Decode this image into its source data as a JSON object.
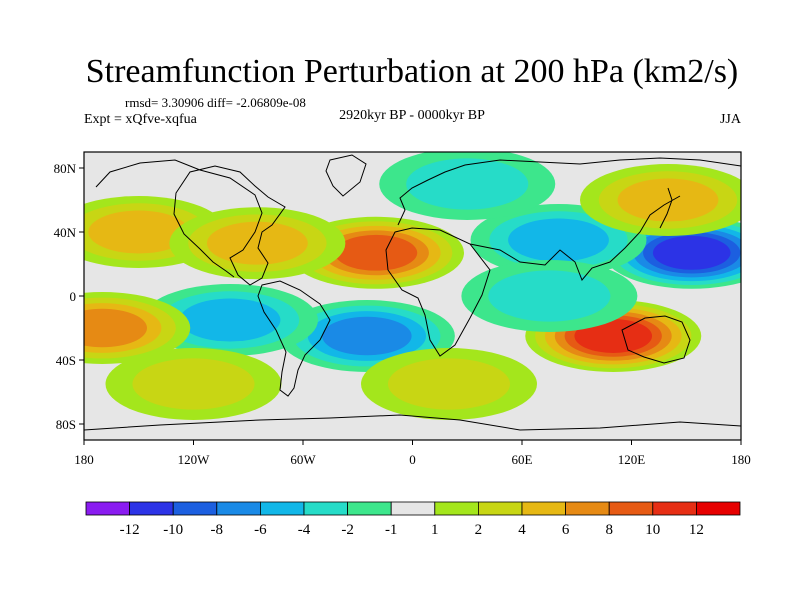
{
  "chart_data": {
    "type": "heatmap",
    "title": "Streamfunction Perturbation at 200 hPa (km2/s)",
    "stats_text": "rmsd= 3.30906  diff= -2.06809e-08",
    "left_label": "Expt = xQfve-xqfua",
    "center_label": "2920kyr BP - 0000kyr BP",
    "right_label": "JJA",
    "x_ticks": [
      "180",
      "120W",
      "60W",
      "0",
      "60E",
      "120E",
      "180"
    ],
    "y_ticks": [
      "80N",
      "40N",
      "0",
      "40S",
      "80S"
    ],
    "lon_range": [
      -180,
      180
    ],
    "lat_range": [
      -90,
      90
    ],
    "colorbar_labels": [
      "-12",
      "-10",
      "-8",
      "-6",
      "-4",
      "-2",
      "-1",
      "1",
      "2",
      "4",
      "6",
      "8",
      "10",
      "12"
    ],
    "colorbar_colors": [
      "#8a1cf0",
      "#2c33e6",
      "#1c5fe0",
      "#1a8ae6",
      "#12b7e8",
      "#26dcc8",
      "#3de68c",
      "#e6e6e6",
      "#a4e61c",
      "#c8d614",
      "#e6b814",
      "#e68a14",
      "#e65a14",
      "#e62e14",
      "#e60000"
    ],
    "features": [
      {
        "name": "n-atlantic-africa-high",
        "lon": -20,
        "lat": 27,
        "value": 9.5
      },
      {
        "name": "nw-pacific-low",
        "lon": 153,
        "lat": 27,
        "value": -10.5
      },
      {
        "name": "australia-high",
        "lon": 110,
        "lat": -25,
        "value": 10
      },
      {
        "name": "south-atlantic-low",
        "lon": -25,
        "lat": -25,
        "value": -6.5
      },
      {
        "name": "se-pacific-low",
        "lon": -100,
        "lat": -15,
        "value": -5
      },
      {
        "name": "sw-pacific-high",
        "lon": -170,
        "lat": -20,
        "value": 7
      },
      {
        "name": "ne-pacific-high",
        "lon": -150,
        "lat": 40,
        "value": 4
      },
      {
        "name": "north-america-high",
        "lon": -85,
        "lat": 33,
        "value": 5
      },
      {
        "name": "asia-low",
        "lon": 80,
        "lat": 35,
        "value": -4
      },
      {
        "name": "indian-ocean-low",
        "lon": 75,
        "lat": 0,
        "value": -3
      },
      {
        "name": "east-siberia-high",
        "lon": 140,
        "lat": 60,
        "value": 4
      },
      {
        "name": "arctic-low",
        "lon": 30,
        "lat": 70,
        "value": -3
      },
      {
        "name": "south-indian-high",
        "lon": 20,
        "lat": -55,
        "value": 3
      },
      {
        "name": "southern-ocean-high",
        "lon": -120,
        "lat": -55,
        "value": 3
      }
    ]
  }
}
